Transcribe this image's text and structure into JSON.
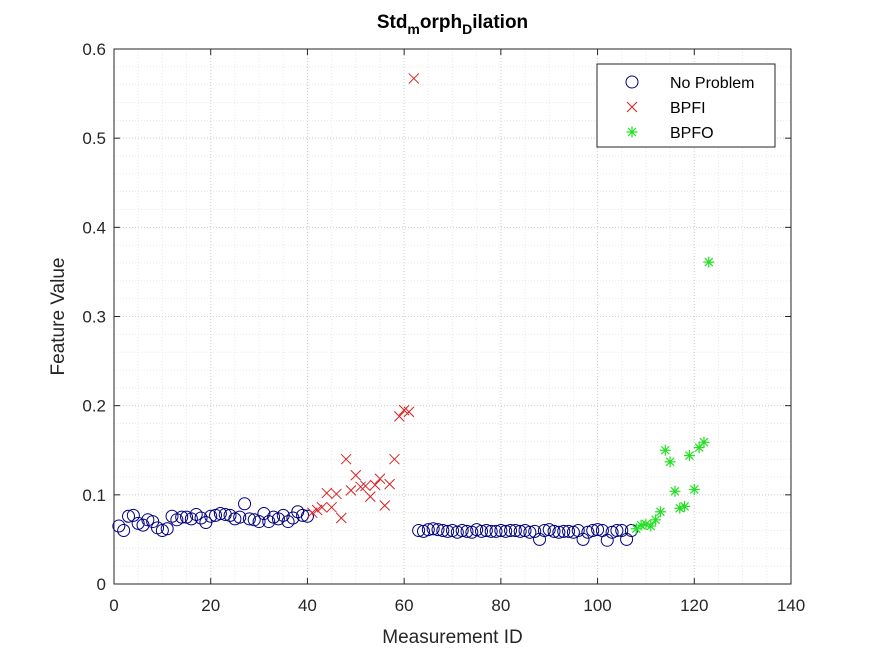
{
  "chart_data": {
    "type": "scatter",
    "title": {
      "base": "Std",
      "sub1": "m",
      "mid": "orph",
      "sub2": "D",
      "end": "ilation"
    },
    "xlabel": "Measurement ID",
    "ylabel": "Feature Value",
    "xlim": [
      0,
      140
    ],
    "ylim": [
      0,
      0.6
    ],
    "xticks": [
      0,
      20,
      40,
      60,
      80,
      100,
      120,
      140
    ],
    "yticks": [
      0,
      0.1,
      0.2,
      0.3,
      0.4,
      0.5,
      0.6
    ],
    "xtick_labels": [
      "0",
      "20",
      "40",
      "60",
      "80",
      "100",
      "120",
      "140"
    ],
    "ytick_labels": [
      "0",
      "0.1",
      "0.2",
      "0.3",
      "0.4",
      "0.5",
      "0.6"
    ],
    "grid": true,
    "minor_grid": true,
    "legend_position": "top-right",
    "series": [
      {
        "name": "No Problem",
        "marker": "circle",
        "color": "#00007f",
        "x": [
          1,
          2,
          3,
          4,
          5,
          6,
          7,
          8,
          9,
          10,
          11,
          12,
          13,
          14,
          15,
          16,
          17,
          18,
          19,
          20,
          21,
          22,
          23,
          24,
          25,
          26,
          27,
          28,
          29,
          30,
          31,
          32,
          33,
          34,
          35,
          36,
          37,
          38,
          39,
          40,
          63,
          64,
          65,
          66,
          67,
          68,
          69,
          70,
          71,
          72,
          73,
          74,
          75,
          76,
          77,
          78,
          79,
          80,
          81,
          82,
          83,
          84,
          85,
          86,
          87,
          88,
          89,
          90,
          91,
          92,
          93,
          94,
          95,
          96,
          97,
          98,
          99,
          100,
          101,
          102,
          103,
          104,
          105,
          106,
          107
        ],
        "y": [
          0.065,
          0.06,
          0.076,
          0.077,
          0.068,
          0.066,
          0.072,
          0.07,
          0.063,
          0.06,
          0.062,
          0.076,
          0.072,
          0.075,
          0.075,
          0.073,
          0.078,
          0.074,
          0.069,
          0.076,
          0.077,
          0.079,
          0.078,
          0.077,
          0.073,
          0.075,
          0.09,
          0.073,
          0.072,
          0.07,
          0.079,
          0.07,
          0.075,
          0.073,
          0.077,
          0.07,
          0.074,
          0.081,
          0.077,
          0.076,
          0.06,
          0.059,
          0.061,
          0.062,
          0.061,
          0.06,
          0.059,
          0.06,
          0.058,
          0.06,
          0.059,
          0.058,
          0.061,
          0.059,
          0.06,
          0.059,
          0.059,
          0.06,
          0.059,
          0.06,
          0.06,
          0.059,
          0.06,
          0.058,
          0.059,
          0.05,
          0.06,
          0.061,
          0.059,
          0.058,
          0.059,
          0.059,
          0.058,
          0.06,
          0.05,
          0.058,
          0.06,
          0.061,
          0.06,
          0.049,
          0.058,
          0.06,
          0.06,
          0.05,
          0.06
        ]
      },
      {
        "name": "BPFI",
        "marker": "x",
        "color": "#d92020",
        "x": [
          41,
          42,
          43,
          44,
          45,
          46,
          47,
          48,
          49,
          50,
          51,
          52,
          53,
          54,
          55,
          56,
          57,
          58,
          59,
          60,
          61,
          62
        ],
        "y": [
          0.08,
          0.083,
          0.086,
          0.102,
          0.086,
          0.101,
          0.074,
          0.14,
          0.105,
          0.122,
          0.109,
          0.11,
          0.098,
          0.111,
          0.118,
          0.088,
          0.112,
          0.14,
          0.188,
          0.195,
          0.193,
          0.567
        ]
      },
      {
        "name": "BPFO",
        "marker": "asterisk",
        "color": "#22e022",
        "x": [
          108,
          109,
          110,
          111,
          112,
          113,
          114,
          115,
          116,
          117,
          118,
          119,
          120,
          121,
          122,
          123
        ],
        "y": [
          0.062,
          0.066,
          0.067,
          0.065,
          0.072,
          0.081,
          0.15,
          0.137,
          0.104,
          0.085,
          0.087,
          0.144,
          0.106,
          0.153,
          0.159,
          0.361
        ]
      }
    ]
  }
}
